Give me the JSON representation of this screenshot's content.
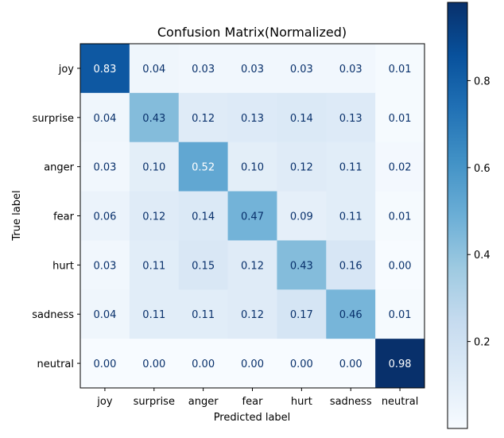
{
  "chart_data": {
    "type": "heatmap",
    "title": "Confusion Matrix(Normalized)",
    "xlabel": "Predicted label",
    "ylabel": "True label",
    "x_categories": [
      "joy",
      "surprise",
      "anger",
      "fear",
      "hurt",
      "sadness",
      "neutral"
    ],
    "y_categories": [
      "joy",
      "surprise",
      "anger",
      "fear",
      "hurt",
      "sadness",
      "neutral"
    ],
    "values": [
      [
        0.83,
        0.04,
        0.03,
        0.03,
        0.03,
        0.03,
        0.01
      ],
      [
        0.04,
        0.43,
        0.12,
        0.13,
        0.14,
        0.13,
        0.01
      ],
      [
        0.03,
        0.1,
        0.52,
        0.1,
        0.12,
        0.11,
        0.02
      ],
      [
        0.06,
        0.12,
        0.14,
        0.47,
        0.09,
        0.11,
        0.01
      ],
      [
        0.03,
        0.11,
        0.15,
        0.12,
        0.43,
        0.16,
        0.0
      ],
      [
        0.04,
        0.11,
        0.11,
        0.12,
        0.17,
        0.46,
        0.01
      ],
      [
        0.0,
        0.0,
        0.0,
        0.0,
        0.0,
        0.0,
        0.98
      ]
    ],
    "colormap": "Blues",
    "colorbar": {
      "range": [
        0.0,
        0.98
      ],
      "ticks": [
        0.2,
        0.4,
        0.6,
        0.8
      ],
      "tick_labels": [
        "0.2",
        "0.4",
        "0.6",
        "0.8"
      ]
    }
  }
}
